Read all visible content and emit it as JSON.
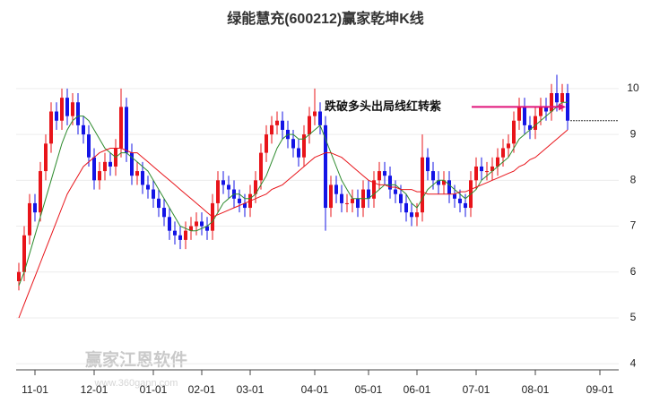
{
  "chart_data": {
    "type": "candlestick",
    "title": "绿能慧充(600212)赢家乾坤K线",
    "annotation": "跌破多头出局线红转紫",
    "watermark": "赢家江恩软件",
    "watermark_url": "www.360gann.com",
    "up_color": "#e8141a",
    "down_color": "#1414e6",
    "categories": [
      null,
      null,
      null,
      "11-01",
      null,
      null,
      null,
      null,
      null,
      null,
      null,
      null,
      null,
      null,
      "12-01",
      null,
      null,
      null,
      null,
      null,
      null,
      null,
      null,
      null,
      null,
      "01-01",
      null,
      null,
      null,
      null,
      null,
      null,
      null,
      null,
      "02-01",
      null,
      null,
      null,
      null,
      null,
      null,
      null,
      null,
      "03-01",
      null,
      null,
      null,
      null,
      null,
      null,
      null,
      null,
      null,
      null,
      null,
      "04-01",
      null,
      null,
      null,
      null,
      null,
      null,
      null,
      null,
      null,
      "05-01",
      null,
      null,
      null,
      null,
      null,
      null,
      null,
      null,
      "06-01",
      null,
      null,
      null,
      null,
      null,
      null,
      null,
      null,
      null,
      null,
      "07-01",
      null,
      null,
      null,
      null,
      null,
      null,
      null,
      null,
      null,
      null,
      "08-01",
      null,
      null,
      null,
      null,
      null,
      null,
      null,
      null,
      null,
      null,
      null,
      "09-01",
      null,
      null,
      null
    ],
    "open": [
      5.8,
      6.0,
      6.8,
      7.5,
      7.3,
      8.2,
      8.8,
      9.5,
      9.3,
      9.8,
      9.4,
      9.7,
      9.2,
      9.0,
      8.5,
      8.0,
      8.2,
      8.4,
      8.3,
      8.7,
      9.6,
      8.6,
      8.1,
      8.2,
      7.9,
      7.8,
      7.6,
      7.4,
      7.2,
      6.9,
      6.8,
      6.7,
      6.9,
      7.0,
      7.1,
      7.0,
      6.9,
      7.5,
      8.0,
      7.9,
      7.8,
      7.6,
      7.5,
      7.4,
      7.7,
      8.0,
      8.6,
      9.0,
      9.2,
      9.3,
      9.1,
      8.9,
      8.7,
      8.5,
      9.0,
      9.4,
      9.5,
      9.2,
      7.4,
      7.9,
      7.7,
      7.5,
      7.5,
      7.6,
      7.4,
      7.8,
      7.6,
      8.0,
      8.2,
      8.1,
      7.8,
      7.7,
      7.5,
      7.3,
      7.2,
      7.3,
      8.5,
      8.2,
      8.0,
      7.9,
      8.0,
      7.7,
      7.6,
      7.5,
      7.4,
      8.0,
      8.3,
      8.2,
      8.2,
      8.3,
      8.5,
      8.7,
      8.8,
      9.3,
      9.6,
      9.2,
      9.1,
      9.4,
      9.6,
      9.5,
      9.9,
      9.7,
      9.9,
      null,
      null,
      null,
      null,
      null,
      null,
      null,
      null,
      null
    ],
    "high": [
      6.2,
      7.0,
      7.7,
      7.7,
      8.4,
      9.0,
      9.7,
      9.7,
      10.0,
      10.0,
      9.9,
      9.9,
      9.4,
      9.2,
      8.7,
      8.4,
      8.6,
      8.6,
      8.9,
      10.0,
      9.8,
      8.8,
      8.4,
      8.4,
      8.1,
      8.0,
      7.8,
      7.6,
      7.4,
      7.1,
      7.0,
      7.1,
      7.2,
      7.3,
      7.3,
      7.2,
      7.7,
      8.2,
      8.2,
      8.1,
      8.0,
      7.8,
      7.7,
      7.9,
      8.2,
      8.8,
      9.2,
      9.4,
      9.5,
      9.5,
      9.3,
      9.1,
      8.9,
      9.2,
      9.6,
      10.0,
      9.7,
      9.4,
      8.1,
      8.1,
      7.9,
      7.7,
      7.8,
      7.8,
      8.0,
      8.0,
      8.2,
      8.4,
      8.4,
      8.3,
      8.0,
      7.9,
      7.7,
      7.5,
      7.5,
      9.0,
      8.7,
      8.4,
      8.2,
      8.2,
      8.2,
      7.9,
      7.8,
      7.7,
      8.2,
      8.5,
      8.5,
      8.4,
      8.5,
      8.7,
      8.9,
      9.0,
      9.5,
      9.8,
      9.8,
      9.4,
      9.6,
      9.8,
      9.8,
      10.1,
      10.3,
      10.1,
      10.1,
      null,
      null,
      null,
      null,
      null,
      null,
      null,
      null,
      null
    ],
    "low": [
      5.6,
      5.8,
      6.6,
      7.1,
      7.1,
      8.0,
      8.6,
      9.1,
      9.1,
      9.2,
      9.2,
      9.0,
      8.8,
      8.3,
      7.8,
      7.8,
      8.0,
      8.1,
      8.1,
      8.5,
      8.4,
      7.9,
      7.9,
      7.7,
      7.6,
      7.4,
      7.2,
      7.0,
      6.7,
      6.6,
      6.5,
      6.5,
      6.7,
      6.8,
      6.8,
      6.7,
      6.7,
      7.3,
      7.7,
      7.6,
      7.4,
      7.3,
      7.2,
      7.2,
      7.5,
      7.8,
      8.4,
      8.8,
      9.0,
      8.9,
      8.7,
      8.5,
      8.3,
      8.3,
      8.8,
      9.2,
      9.0,
      6.9,
      7.2,
      7.5,
      7.3,
      7.3,
      7.3,
      7.2,
      7.2,
      7.4,
      7.4,
      7.8,
      7.9,
      7.6,
      7.5,
      7.3,
      7.1,
      7.0,
      7.0,
      7.1,
      8.0,
      7.8,
      7.7,
      7.7,
      7.5,
      7.4,
      7.3,
      7.2,
      7.2,
      7.8,
      8.0,
      8.0,
      8.0,
      8.1,
      8.3,
      8.5,
      8.6,
      9.1,
      9.0,
      8.9,
      8.9,
      9.2,
      9.3,
      9.3,
      9.5,
      9.5,
      9.1,
      null,
      null,
      null,
      null,
      null,
      null,
      null,
      null,
      null
    ],
    "close": [
      6.0,
      6.8,
      7.5,
      7.3,
      8.2,
      8.8,
      9.5,
      9.3,
      9.8,
      9.4,
      9.7,
      9.2,
      9.0,
      8.5,
      8.0,
      8.2,
      8.4,
      8.3,
      8.7,
      9.6,
      8.6,
      8.1,
      8.2,
      7.9,
      7.8,
      7.6,
      7.4,
      7.2,
      6.9,
      6.8,
      6.7,
      6.9,
      7.0,
      7.1,
      7.0,
      6.9,
      7.5,
      8.0,
      7.9,
      7.8,
      7.6,
      7.5,
      7.4,
      7.7,
      8.0,
      8.6,
      9.0,
      9.2,
      9.3,
      9.1,
      8.9,
      8.7,
      8.5,
      9.0,
      9.4,
      9.5,
      9.2,
      7.4,
      7.9,
      7.7,
      7.5,
      7.5,
      7.6,
      7.4,
      7.8,
      7.6,
      8.0,
      8.2,
      8.1,
      7.8,
      7.7,
      7.5,
      7.3,
      7.2,
      7.3,
      8.5,
      8.2,
      8.0,
      7.9,
      8.0,
      7.7,
      7.6,
      7.5,
      7.4,
      8.0,
      8.3,
      8.2,
      8.2,
      8.3,
      8.5,
      8.7,
      8.8,
      9.3,
      9.6,
      9.2,
      9.1,
      9.4,
      9.6,
      9.5,
      9.9,
      9.7,
      9.9,
      9.3,
      null,
      null,
      null,
      null,
      null,
      null,
      null,
      null,
      null
    ],
    "series": [
      {
        "color": "#2e8b2e",
        "values": [
          5.7,
          6.0,
          6.4,
          6.8,
          7.2,
          7.6,
          8.0,
          8.4,
          8.8,
          9.1,
          9.3,
          9.4,
          9.4,
          9.3,
          9.1,
          8.9,
          8.7,
          8.6,
          8.5,
          8.6,
          8.6,
          8.5,
          8.4,
          8.3,
          8.2,
          8.0,
          7.8,
          7.6,
          7.4,
          7.2,
          7.0,
          6.95,
          6.9,
          6.9,
          6.95,
          7.0,
          7.1,
          7.3,
          7.5,
          7.6,
          7.7,
          7.7,
          7.6,
          7.6,
          7.7,
          7.9,
          8.1,
          8.4,
          8.7,
          8.9,
          9.0,
          9.0,
          8.9,
          8.9,
          9.0,
          9.1,
          9.2,
          8.9,
          8.6,
          8.3,
          8.0,
          7.8,
          7.6,
          7.6,
          7.6,
          7.6,
          7.7,
          7.8,
          7.9,
          7.9,
          7.9,
          7.8,
          7.7,
          7.5,
          7.4,
          7.6,
          7.8,
          7.9,
          8.0,
          8.0,
          7.9,
          7.8,
          7.7,
          7.6,
          7.7,
          7.8,
          8.0,
          8.1,
          8.2,
          8.3,
          8.4,
          8.5,
          8.7,
          8.9,
          9.0,
          9.1,
          9.2,
          9.3,
          9.4,
          9.5,
          9.6,
          9.7,
          9.7,
          null,
          null,
          null,
          null,
          null,
          null,
          null,
          null,
          null
        ]
      },
      {
        "color": "#e8141a",
        "values": [
          5.0,
          5.3,
          5.6,
          5.9,
          6.2,
          6.5,
          6.8,
          7.1,
          7.4,
          7.7,
          7.9,
          8.1,
          8.3,
          8.4,
          8.5,
          8.6,
          8.65,
          8.7,
          8.7,
          8.7,
          8.65,
          8.6,
          8.6,
          8.5,
          8.4,
          8.3,
          8.2,
          8.1,
          8.0,
          7.9,
          7.8,
          7.7,
          7.6,
          7.5,
          7.4,
          7.3,
          7.2,
          7.25,
          7.3,
          7.35,
          7.4,
          7.45,
          7.5,
          7.55,
          7.6,
          7.65,
          7.7,
          7.8,
          7.85,
          7.9,
          8.0,
          8.1,
          8.2,
          8.3,
          8.4,
          8.5,
          8.55,
          8.6,
          8.6,
          8.55,
          8.5,
          8.4,
          8.3,
          8.2,
          8.1,
          8.0,
          7.95,
          7.9,
          7.9,
          7.85,
          7.85,
          7.8,
          7.8,
          7.8,
          7.75,
          7.75,
          7.7,
          7.7,
          7.7,
          7.7,
          7.7,
          7.7,
          7.75,
          7.75,
          7.8,
          7.85,
          7.9,
          7.95,
          8.0,
          8.05,
          8.1,
          8.15,
          8.2,
          8.3,
          8.35,
          8.45,
          8.5,
          8.6,
          8.7,
          8.8,
          8.9,
          9.0,
          9.1,
          null,
          null,
          null,
          null,
          null,
          null,
          null,
          null,
          null
        ]
      }
    ],
    "ylim": [
      3.73,
      11.15
    ],
    "yticks": [
      4,
      5,
      6,
      7,
      8,
      9,
      10
    ],
    "grid": true
  }
}
